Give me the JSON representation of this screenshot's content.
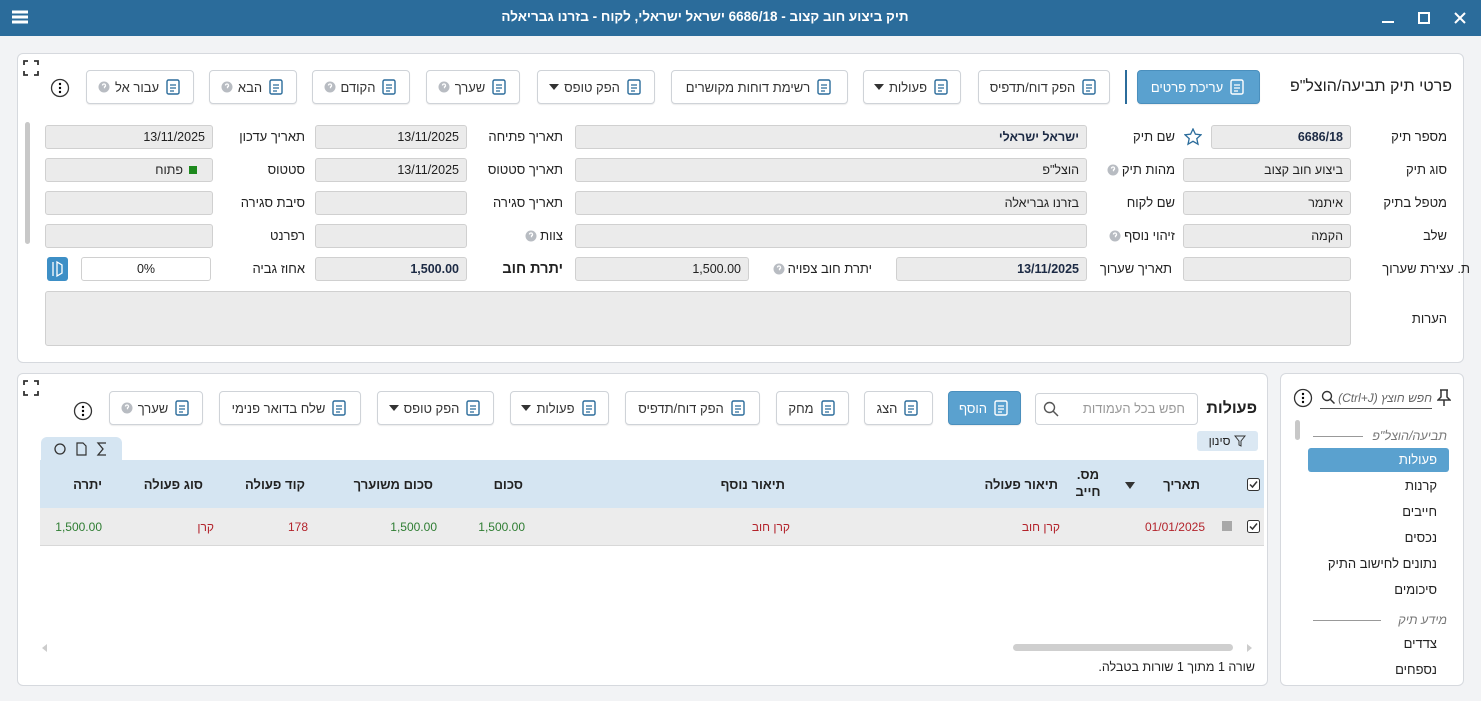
{
  "window": {
    "title": "תיק ביצוע חוב קצוב - 6686/18 ישראל ישראלי, לקוח - בזרנו גבריאלה"
  },
  "details": {
    "title": "פרטי תיק תביעה/הוצל\"פ",
    "toolbar": [
      "עריכת פרטים",
      "הפק דוח/תדפיס",
      "פעולות",
      "רשימת דוחות מקושרים",
      "הפק טופס",
      "שערך",
      "הקודם",
      "הבא",
      "עבור אל"
    ],
    "fields": [
      {
        "label": "מספר תיק",
        "value": "6686/18"
      },
      {
        "label": "שם תיק",
        "value": "ישראל ישראלי"
      },
      {
        "label": "תאריך פתיחה",
        "value": "13/11/2025"
      },
      {
        "label": "תאריך עדכון",
        "value": "13/11/2025"
      },
      {
        "label": "סוג תיק",
        "value": "ביצוע חוב קצוב"
      },
      {
        "label": "מהות תיק",
        "value": "הוצל\"פ"
      },
      {
        "label": "תאריך סטטוס",
        "value": "13/11/2025"
      },
      {
        "label": "סטטוס",
        "value": "פתוח"
      },
      {
        "label": "מטפל בתיק",
        "value": "איתמר"
      },
      {
        "label": "שם לקוח",
        "value": "בזרנו גבריאלה"
      },
      {
        "label": "תאריך סגירה"
      },
      {
        "label": "סיבת סגירה"
      },
      {
        "label": "שלב",
        "value": "הקמה"
      },
      {
        "label": "זיהוי נוסף"
      },
      {
        "label": "צוות"
      },
      {
        "label": "רפרנט"
      },
      {
        "label": "ת. עצירת שערוך"
      },
      {
        "label": "תאריך שערוך",
        "value": "13/11/2025"
      },
      {
        "label": "יתרת חוב צפויה",
        "value": "1,500.00"
      },
      {
        "label": "יתרת חוב",
        "value": "1,500.00"
      },
      {
        "label": "אחוז גביה",
        "value": "0%"
      },
      {
        "label": "הערות"
      }
    ]
  },
  "actions": {
    "title": "פעולות",
    "search_placeholder": "חפש בכל העמודות",
    "toolbar": [
      "הוסף",
      "הצג",
      "מחק",
      "הפק דוח/תדפיס",
      "פעולות",
      "הפק טופס",
      "שלח בדואר פנימי",
      "שערך"
    ],
    "filter": "סינון",
    "table": {
      "columns": [
        "תאריך",
        "מס. חייב",
        "תיאור פעולה",
        "תיאור נוסף",
        "סכום",
        "סכום משוערך",
        "קוד פעולה",
        "סוג פעולה",
        "יתרה"
      ],
      "rows": [
        [
          "01/01/2025",
          null,
          "קרן חוב",
          "קרן חוב",
          "1,500.00",
          "1,500.00",
          "178",
          "קרן",
          "1,500.00"
        ]
      ]
    },
    "footer": "שורה 1 מתוך 1 שורות בטבלה."
  },
  "sidebar": {
    "search_placeholder": "חפש חוצץ (Ctrl+J)",
    "sections": [
      {
        "title": "תביעה/הוצל\"פ",
        "items": [
          "פעולות",
          "קרנות",
          "חייבים",
          "נכסים",
          "נתונים לחישוב התיק",
          "סיכומים"
        ]
      },
      {
        "title": "מידע תיק",
        "items": [
          "צדדים",
          "נספחים"
        ]
      }
    ]
  }
}
